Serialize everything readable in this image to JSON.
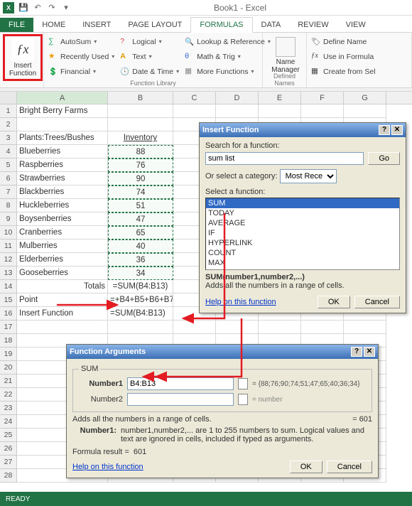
{
  "window": {
    "title": "Book1 - Excel"
  },
  "tabs": {
    "file": "FILE",
    "home": "HOME",
    "insert": "INSERT",
    "pagelayout": "PAGE LAYOUT",
    "formulas": "FORMULAS",
    "data": "DATA",
    "review": "REVIEW",
    "view": "VIEW",
    "active": "FORMULAS"
  },
  "ribbon": {
    "insert_function_label": "Insert\nFunction",
    "library": {
      "autosum": "AutoSum",
      "recent": "Recently Used",
      "financial": "Financial",
      "logical": "Logical",
      "text": "Text",
      "datetime": "Date & Time",
      "lookup": "Lookup & Reference",
      "mathtrig": "Math & Trig",
      "more": "More Functions",
      "group_label": "Function Library"
    },
    "names": {
      "manager": "Name\nManager",
      "define": "Define Name",
      "use": "Use in Formula",
      "create": "Create from Sel",
      "group_label": "Defined Names"
    }
  },
  "columns": {
    "widths": {
      "A": 128,
      "B": 92,
      "C": 60,
      "D": 60,
      "E": 60,
      "F": 60,
      "G": 60
    },
    "headers": [
      "A",
      "B",
      "C",
      "D",
      "E",
      "F",
      "G"
    ]
  },
  "rows": [
    {
      "n": 1,
      "A": "Bright Berry Farms"
    },
    {
      "n": 2
    },
    {
      "n": 3,
      "A": "Plants:Trees/Bushes",
      "B": "Inventory",
      "Bcenter": true
    },
    {
      "n": 4,
      "A": "Blueberries",
      "B": "88"
    },
    {
      "n": 5,
      "A": "Raspberries",
      "B": "76"
    },
    {
      "n": 6,
      "A": "Strawberries",
      "B": "90"
    },
    {
      "n": 7,
      "A": "Blackberries",
      "B": "74"
    },
    {
      "n": 8,
      "A": "Huckleberries",
      "B": "51"
    },
    {
      "n": 9,
      "A": "Boysenberries",
      "B": "47"
    },
    {
      "n": 10,
      "A": "Cranberries",
      "B": "65"
    },
    {
      "n": 11,
      "A": "Mulberries",
      "B": "40"
    },
    {
      "n": 12,
      "A": "Elderberries",
      "B": "36"
    },
    {
      "n": 13,
      "A": "Gooseberries",
      "B": "34"
    },
    {
      "n": 14,
      "A": "Totals",
      "Aright": true,
      "B": "=SUM(B4:B13)",
      "Bcenter": true
    },
    {
      "n": 15,
      "A": "Point",
      "B": "=+B4+B5+B6+B7",
      "arrowA": true
    },
    {
      "n": 16,
      "A": "Insert Function",
      "B": "=SUM(B4:B13)",
      "arrowB": true
    },
    {
      "n": 17
    },
    {
      "n": 18
    },
    {
      "n": 19
    },
    {
      "n": 20
    },
    {
      "n": 21
    },
    {
      "n": 22
    },
    {
      "n": 23
    },
    {
      "n": 24
    },
    {
      "n": 25
    },
    {
      "n": 26
    },
    {
      "n": 27
    },
    {
      "n": 28
    }
  ],
  "status": {
    "ready": "READY"
  },
  "insert_fn_dialog": {
    "title": "Insert Function",
    "search_label": "Search for a function:",
    "search_value": "sum list",
    "go": "Go",
    "category_label": "Or select a category:",
    "category_value": "Most Recen",
    "select_label": "Select a function:",
    "functions": [
      "SUM",
      "TODAY",
      "AVERAGE",
      "IF",
      "HYPERLINK",
      "COUNT",
      "MAX"
    ],
    "selected": "SUM",
    "syntax": "SUM(number1,number2,...)",
    "desc": "Adds all the numbers in a range of cells.",
    "help": "Help on this function",
    "ok": "OK",
    "cancel": "Cancel"
  },
  "fn_args_dialog": {
    "title": "Function Arguments",
    "group": "SUM",
    "arg1_label": "Number1",
    "arg1_value": "B4:B13",
    "arg1_eval": "{88;76;90;74;51;47;65;40;36;34}",
    "arg2_label": "Number2",
    "arg2_eval": "number",
    "desc": "Adds all the numbers in a range of cells.",
    "result_inline": "=   601",
    "arg_help_label": "Number1:",
    "arg_help": "number1,number2,... are 1 to 255 numbers to sum. Logical values and text are ignored in cells, included if typed as arguments.",
    "formula_result_label": "Formula result =",
    "formula_result_value": "601",
    "help": "Help on this function",
    "ok": "OK",
    "cancel": "Cancel"
  },
  "colors": {
    "brand": "#217346",
    "warn": "#e31b23",
    "dlg": "#ece9d8",
    "sel": "#316ac5"
  }
}
